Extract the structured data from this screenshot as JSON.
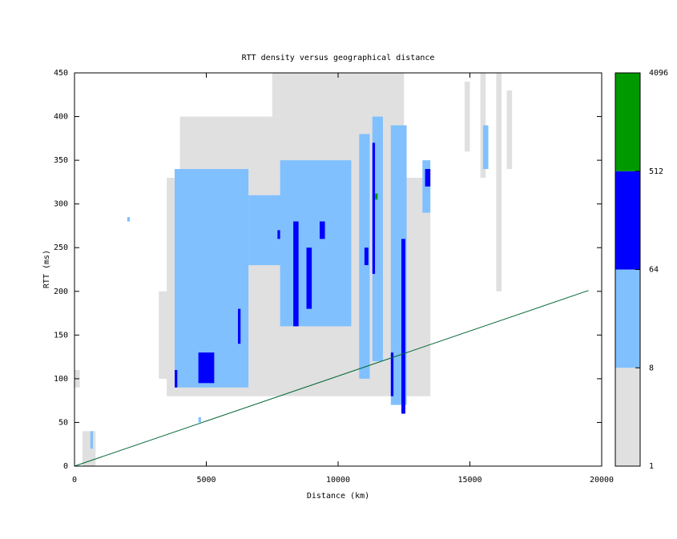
{
  "chart_data": {
    "type": "density",
    "title": "RTT density versus geographical distance",
    "x_label": "Distance (km)",
    "y_label": "RTT (ms)",
    "xlim": [
      0,
      20000
    ],
    "ylim": [
      0,
      450
    ],
    "xticks": [
      0,
      5000,
      10000,
      15000,
      20000
    ],
    "yticks": [
      0,
      50,
      100,
      150,
      200,
      250,
      300,
      350,
      400,
      450
    ],
    "colorbar": {
      "ticks": [
        1,
        8,
        64,
        512,
        4096
      ],
      "colors": [
        "#e0e0e0",
        "#80c0ff",
        "#0000ff",
        "#009900"
      ],
      "log": true
    },
    "cells": [
      {
        "x": [
          3500,
          13500
        ],
        "y": [
          80,
          330
        ],
        "count": 3
      },
      {
        "x": [
          4000,
          12500
        ],
        "y": [
          330,
          400
        ],
        "count": 3
      },
      {
        "x": [
          7500,
          12500
        ],
        "y": [
          400,
          450
        ],
        "count": 3
      },
      {
        "x": [
          3200,
          3800
        ],
        "y": [
          100,
          200
        ],
        "count": 3
      },
      {
        "x": [
          15400,
          15600
        ],
        "y": [
          330,
          450
        ],
        "count": 3
      },
      {
        "x": [
          16000,
          16200
        ],
        "y": [
          200,
          450
        ],
        "count": 3
      },
      {
        "x": [
          14800,
          15000
        ],
        "y": [
          360,
          440
        ],
        "count": 3
      },
      {
        "x": [
          16400,
          16600
        ],
        "y": [
          340,
          430
        ],
        "count": 3
      },
      {
        "x": [
          0,
          200
        ],
        "y": [
          90,
          110
        ],
        "count": 3
      },
      {
        "x": [
          300,
          800
        ],
        "y": [
          0,
          40
        ],
        "count": 3
      },
      {
        "x": [
          3800,
          6600
        ],
        "y": [
          90,
          340
        ],
        "count": 20
      },
      {
        "x": [
          6600,
          8000
        ],
        "y": [
          230,
          310
        ],
        "count": 20
      },
      {
        "x": [
          7800,
          10500
        ],
        "y": [
          160,
          350
        ],
        "count": 20
      },
      {
        "x": [
          8500,
          10000
        ],
        "y": [
          170,
          240
        ],
        "count": 20
      },
      {
        "x": [
          10800,
          11200
        ],
        "y": [
          100,
          380
        ],
        "count": 20
      },
      {
        "x": [
          11300,
          11700
        ],
        "y": [
          120,
          400
        ],
        "count": 20
      },
      {
        "x": [
          12000,
          12600
        ],
        "y": [
          70,
          390
        ],
        "count": 20
      },
      {
        "x": [
          13200,
          13500
        ],
        "y": [
          290,
          350
        ],
        "count": 20
      },
      {
        "x": [
          15500,
          15700
        ],
        "y": [
          340,
          390
        ],
        "count": 20
      },
      {
        "x": [
          2000,
          2100
        ],
        "y": [
          280,
          285
        ],
        "count": 20
      },
      {
        "x": [
          4700,
          4800
        ],
        "y": [
          50,
          56
        ],
        "count": 20
      },
      {
        "x": [
          600,
          700
        ],
        "y": [
          20,
          40
        ],
        "count": 20
      },
      {
        "x": [
          4700,
          5300
        ],
        "y": [
          95,
          130
        ],
        "count": 150
      },
      {
        "x": [
          3800,
          3900
        ],
        "y": [
          90,
          110
        ],
        "count": 150
      },
      {
        "x": [
          8300,
          8500
        ],
        "y": [
          160,
          280
        ],
        "count": 150
      },
      {
        "x": [
          8800,
          9000
        ],
        "y": [
          180,
          250
        ],
        "count": 150
      },
      {
        "x": [
          9300,
          9500
        ],
        "y": [
          260,
          280
        ],
        "count": 150
      },
      {
        "x": [
          11000,
          11150
        ],
        "y": [
          230,
          250
        ],
        "count": 150
      },
      {
        "x": [
          11300,
          11400
        ],
        "y": [
          220,
          370
        ],
        "count": 150
      },
      {
        "x": [
          12400,
          12550
        ],
        "y": [
          60,
          260
        ],
        "count": 150
      },
      {
        "x": [
          6200,
          6300
        ],
        "y": [
          140,
          180
        ],
        "count": 150
      },
      {
        "x": [
          12000,
          12100
        ],
        "y": [
          80,
          130
        ],
        "count": 150
      },
      {
        "x": [
          13300,
          13500
        ],
        "y": [
          320,
          340
        ],
        "count": 150
      },
      {
        "x": [
          7700,
          7800
        ],
        "y": [
          260,
          270
        ],
        "count": 150
      },
      {
        "x": [
          11400,
          11500
        ],
        "y": [
          305,
          312
        ],
        "count": 600
      }
    ],
    "line": {
      "color": "#006633",
      "x": [
        0,
        19500
      ],
      "y": [
        0,
        201
      ]
    }
  }
}
